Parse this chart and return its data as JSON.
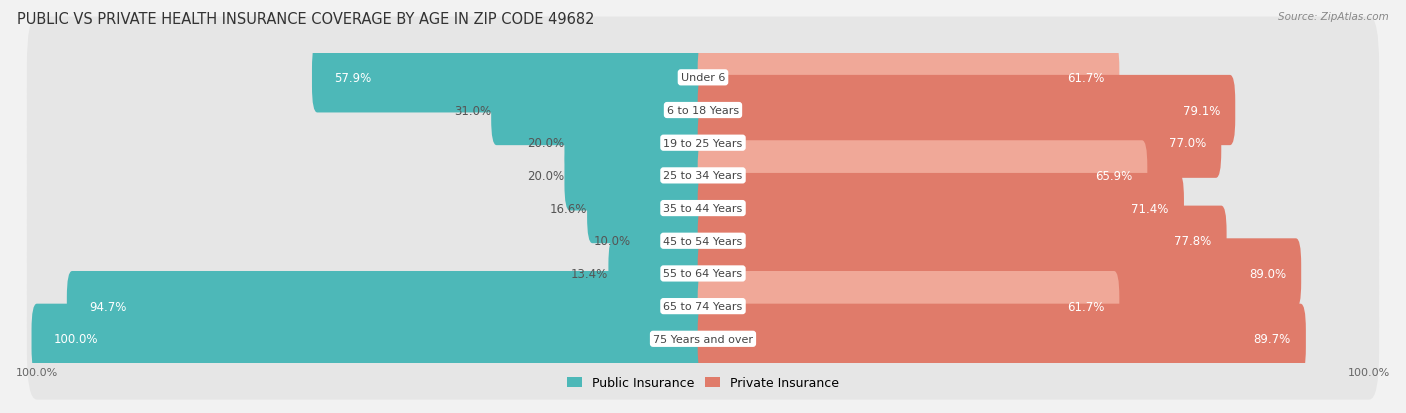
{
  "title": "PUBLIC VS PRIVATE HEALTH INSURANCE COVERAGE BY AGE IN ZIP CODE 49682",
  "source": "Source: ZipAtlas.com",
  "categories": [
    "Under 6",
    "6 to 18 Years",
    "19 to 25 Years",
    "25 to 34 Years",
    "35 to 44 Years",
    "45 to 54 Years",
    "55 to 64 Years",
    "65 to 74 Years",
    "75 Years and over"
  ],
  "public_values": [
    57.9,
    31.0,
    20.0,
    20.0,
    16.6,
    10.0,
    13.4,
    94.7,
    100.0
  ],
  "private_values": [
    61.7,
    79.1,
    77.0,
    65.9,
    71.4,
    77.8,
    89.0,
    61.7,
    89.7
  ],
  "public_color": "#4db8b8",
  "private_color": "#e07b6a",
  "public_color_light": "#7fd1d1",
  "private_color_light": "#f0a898",
  "background_color": "#f2f2f2",
  "row_bg_color": "#e6e6e6",
  "max_value": 100.0,
  "title_fontsize": 10.5,
  "bar_label_fontsize": 8.5,
  "category_fontsize": 8.0,
  "legend_fontsize": 9,
  "axis_label_fontsize": 8,
  "public_white_threshold": 50,
  "private_white_threshold": 5
}
